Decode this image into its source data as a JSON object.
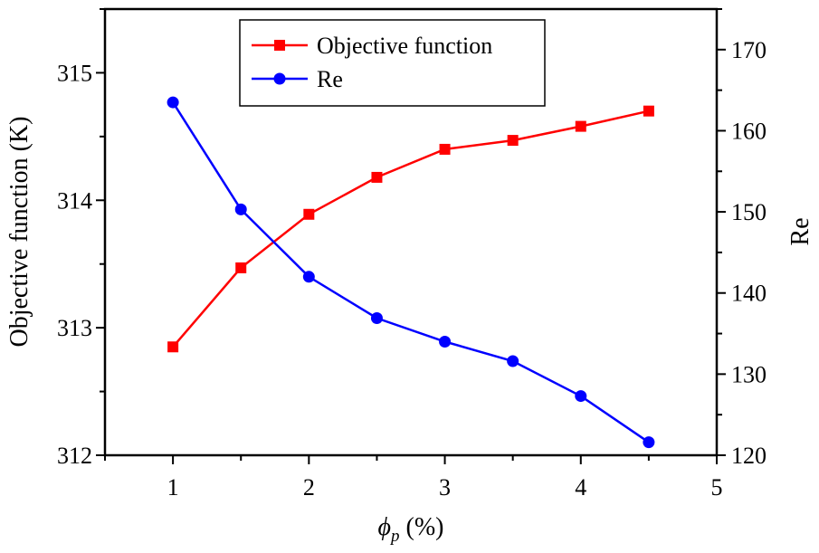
{
  "chart_data": {
    "type": "line",
    "x": [
      1,
      1.5,
      2,
      2.5,
      3,
      3.5,
      4,
      4.5
    ],
    "xlabel_symbol": "ϕ",
    "xlabel_subscript": "p",
    "xlabel_unit": " (%)",
    "xlim": [
      0.5,
      5
    ],
    "xticks": [
      "1",
      "2",
      "3",
      "4",
      "5"
    ],
    "xtick_values": [
      1,
      2,
      3,
      4,
      5
    ],
    "ylabel_left": "Objective function (K)",
    "ylim_left": [
      312,
      315.5
    ],
    "yticks_left": [
      "312",
      "313",
      "314",
      "315"
    ],
    "ytick_values_left": [
      312,
      313,
      314,
      315
    ],
    "ylabel_right": "Re",
    "ylim_right": [
      120,
      175
    ],
    "yticks_right": [
      "120",
      "130",
      "140",
      "150",
      "160",
      "170"
    ],
    "ytick_values_right": [
      120,
      130,
      140,
      150,
      160,
      170
    ],
    "grid": false,
    "legend_position": "top-center",
    "series": [
      {
        "name": "Objective function",
        "axis": "left",
        "marker": "square",
        "color": "#ff0000",
        "values": [
          312.85,
          313.47,
          313.89,
          314.18,
          314.4,
          314.47,
          314.58,
          314.7
        ]
      },
      {
        "name": "Re",
        "axis": "right",
        "marker": "circle",
        "color": "#0000ff",
        "values": [
          163.5,
          150.3,
          142.0,
          136.9,
          134.0,
          131.6,
          127.3,
          121.6
        ]
      }
    ]
  }
}
